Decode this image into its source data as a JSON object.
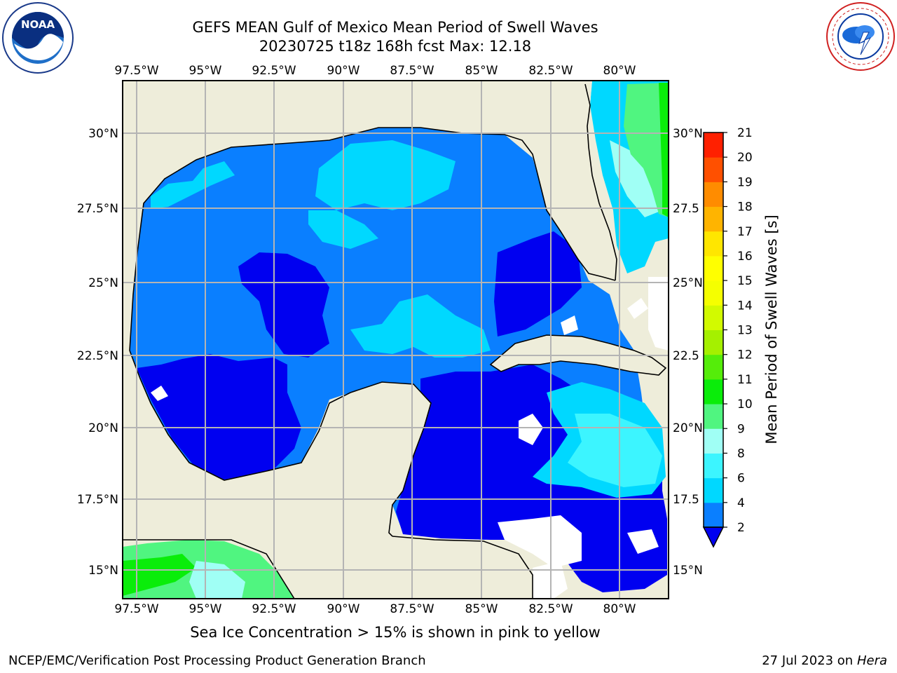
{
  "header": {
    "title_line1": "GEFS MEAN Gulf of Mexico Mean Period of Swell Waves",
    "title_line2": "20230725 t18z 168h fcst   Max: 12.18"
  },
  "logos": {
    "left": {
      "name": "noaa-logo",
      "text": "NOAA"
    },
    "right": {
      "name": "nws-logo",
      "text": "NATIONAL WEATHER SERVICE"
    }
  },
  "map": {
    "lon_labels": [
      "97.5°W",
      "95°W",
      "92.5°W",
      "90°W",
      "87.5°W",
      "85°W",
      "82.5°W",
      "80°W"
    ],
    "lat_labels_left": [
      "30°N",
      "27.5°N",
      "25°N",
      "22.5°N",
      "20°N",
      "17.5°N",
      "15°N"
    ],
    "lat_labels_right": [
      "30°N",
      "27.5",
      "25°N",
      "22.5",
      "20°N",
      "17.5",
      "15°N"
    ],
    "colors": {
      "land": "#eeedda",
      "grid": "#b4b4b4",
      "coast": "#000000"
    }
  },
  "colorbar": {
    "label": "Mean Period of Swell Waves [s]",
    "ticks": [
      "2",
      "4",
      "6",
      "8",
      "9",
      "10",
      "11",
      "12",
      "13",
      "14",
      "15",
      "16",
      "17",
      "18",
      "19",
      "20",
      "21"
    ],
    "colors": [
      "#0a7fff",
      "#00d8ff",
      "#3cf5ff",
      "#a0fff5",
      "#50f580",
      "#0aed0a",
      "#55ed0a",
      "#a5f000",
      "#d2fa00",
      "#f5ff00",
      "#ffff00",
      "#ffe600",
      "#ffb400",
      "#ff8c00",
      "#ff5000",
      "#ff2000"
    ],
    "under_color": "#0000f0"
  },
  "footer": {
    "note": "Sea Ice Concentration > 15% is shown in pink to yellow",
    "left": "NCEP/EMC/Verification Post Processing Product Generation Branch",
    "right_date": "27 Jul 2023 on ",
    "right_machine": "Hera"
  }
}
